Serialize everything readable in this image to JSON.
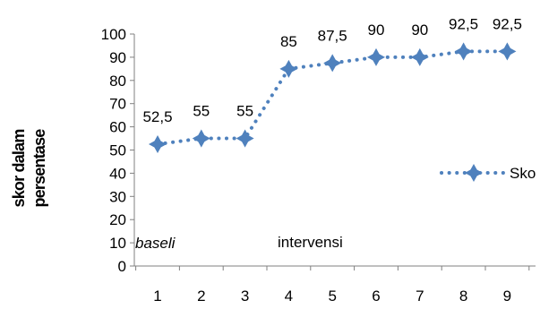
{
  "chart_data": {
    "type": "line",
    "title": "",
    "xlabel": "",
    "ylabel": "skor dalam persentase",
    "ylabel_lines": [
      "skor dalam",
      "persentase"
    ],
    "categories": [
      "1",
      "2",
      "3",
      "4",
      "5",
      "6",
      "7",
      "8",
      "9"
    ],
    "ylim": [
      0,
      100
    ],
    "yticks": [
      "0",
      "10",
      "20",
      "30",
      "40",
      "50",
      "60",
      "70",
      "80",
      "90",
      "100"
    ],
    "grid": false,
    "legend_position": "right",
    "series": [
      {
        "name": "Sko",
        "values": [
          52.5,
          55,
          55,
          85,
          87.5,
          90,
          90,
          92.5,
          92.5
        ],
        "data_labels": [
          "52,5",
          "55",
          "55",
          "85",
          "87,5",
          "90",
          "90",
          "92,5",
          "92,5"
        ],
        "color": "#4F81BD"
      }
    ],
    "annotations": [
      {
        "text": "baseli",
        "style": "italic"
      },
      {
        "text": "intervensi",
        "style": "normal"
      }
    ]
  }
}
